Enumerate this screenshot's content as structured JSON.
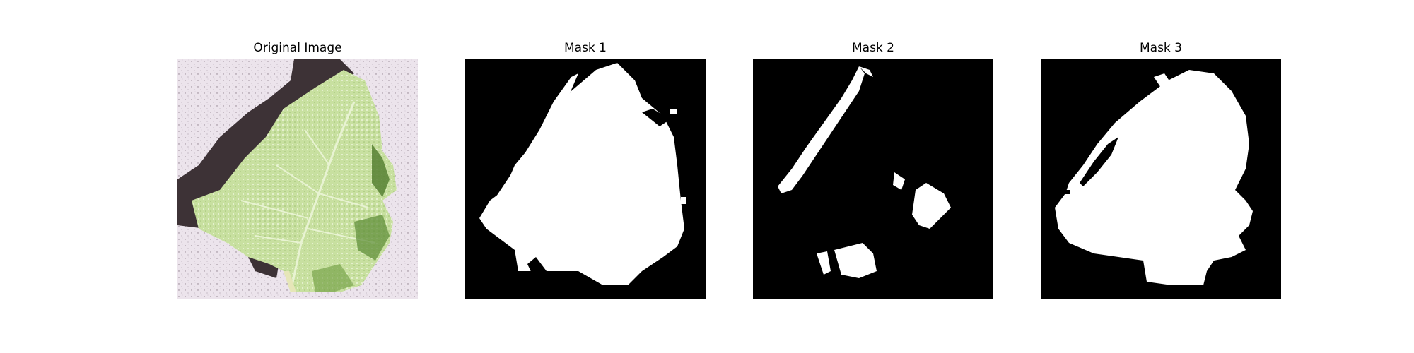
{
  "figure": {
    "panels": [
      {
        "title": "Original Image"
      },
      {
        "title": "Mask 1"
      },
      {
        "title": "Mask 2"
      },
      {
        "title": "Mask 3"
      }
    ]
  },
  "colors": {
    "background": "#ffffff",
    "mask_background": "#000000",
    "mask_foreground": "#ffffff",
    "leaf_green": "#b9d68a",
    "shadow": "#3d3236",
    "paper": "#ece4ec"
  }
}
